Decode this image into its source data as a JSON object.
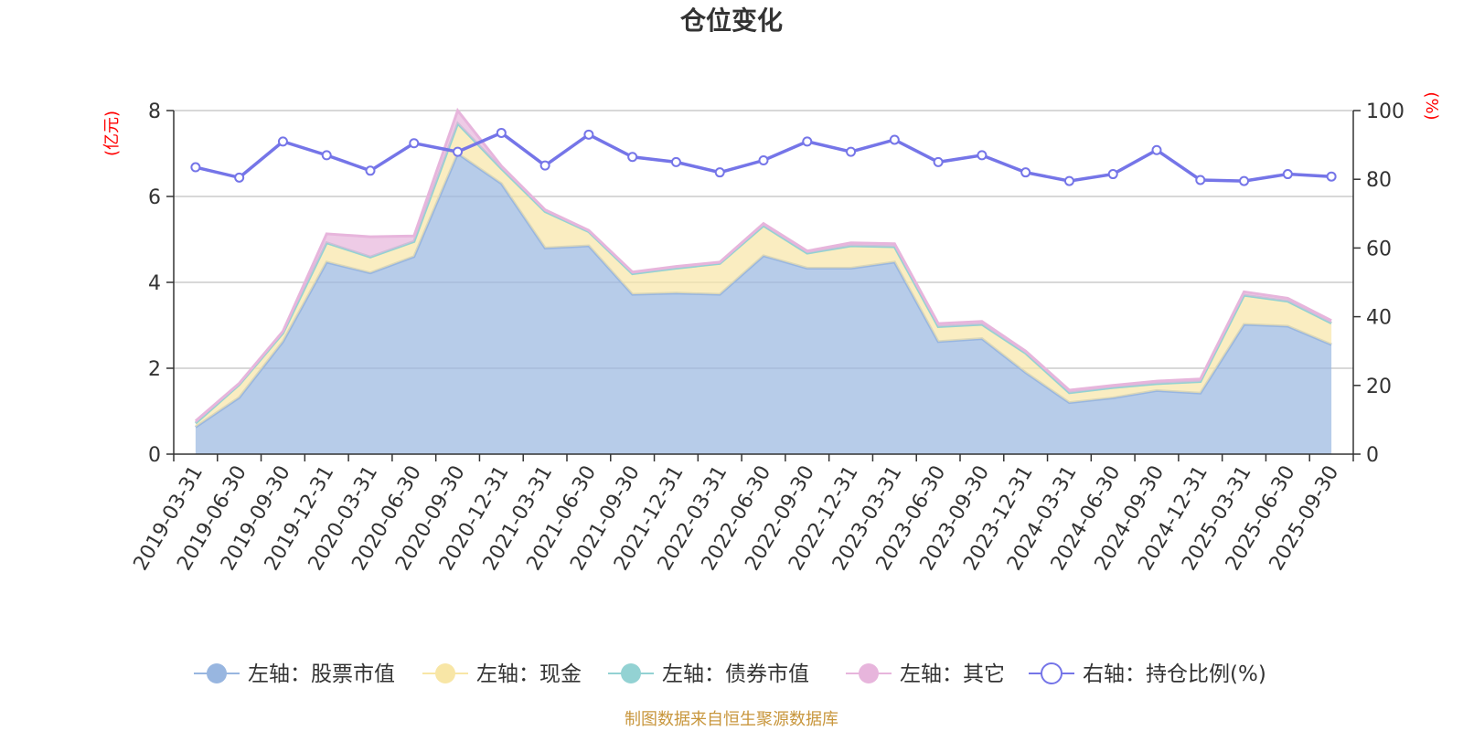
{
  "chart_data": {
    "type": "area",
    "title": "仓位变化",
    "y_left_unit": "(亿元)",
    "y_right_unit": "(%)",
    "y_left_lim": [
      0,
      8
    ],
    "y_left_ticks": [
      0,
      2,
      4,
      6,
      8
    ],
    "y_right_lim": [
      0,
      100
    ],
    "y_right_ticks": [
      0,
      20,
      40,
      60,
      80,
      100
    ],
    "grid": true,
    "legend_position": "bottom",
    "categories": [
      "2019-03-31",
      "2019-06-30",
      "2019-09-30",
      "2019-12-31",
      "2020-03-31",
      "2020-06-30",
      "2020-09-30",
      "2020-12-31",
      "2021-03-31",
      "2021-06-30",
      "2021-09-30",
      "2021-12-31",
      "2022-03-31",
      "2022-06-30",
      "2022-09-30",
      "2022-12-31",
      "2023-03-31",
      "2023-06-30",
      "2023-09-30",
      "2023-12-31",
      "2024-03-31",
      "2024-06-30",
      "2024-09-30",
      "2024-12-31",
      "2025-03-31",
      "2025-06-30",
      "2025-09-30"
    ],
    "series": [
      {
        "name": "左轴：股票市值",
        "axis": "left",
        "kind": "stacked-area",
        "color": "#98b6e0",
        "values": [
          0.63,
          1.32,
          2.62,
          4.47,
          4.22,
          4.6,
          7.0,
          6.3,
          4.8,
          4.85,
          3.72,
          3.75,
          3.72,
          4.62,
          4.33,
          4.33,
          4.47,
          2.62,
          2.69,
          1.9,
          1.2,
          1.31,
          1.48,
          1.42,
          3.02,
          2.98,
          2.55
        ]
      },
      {
        "name": "左轴：现金",
        "axis": "left",
        "kind": "stacked-area",
        "color": "#f8e6a6",
        "values": [
          0.09,
          0.3,
          0.2,
          0.45,
          0.37,
          0.35,
          0.7,
          0.35,
          0.85,
          0.33,
          0.48,
          0.58,
          0.72,
          0.7,
          0.35,
          0.52,
          0.36,
          0.35,
          0.33,
          0.45,
          0.23,
          0.24,
          0.16,
          0.27,
          0.68,
          0.58,
          0.5
        ]
      },
      {
        "name": "左轴：债券市值",
        "axis": "left",
        "kind": "stacked-area",
        "color": "#93d2d3",
        "values": [
          0,
          0,
          0,
          0,
          0,
          0,
          0,
          0,
          0,
          0,
          0,
          0,
          0,
          0,
          0,
          0,
          0,
          0,
          0,
          0,
          0,
          0,
          0,
          0,
          0,
          0,
          0
        ]
      },
      {
        "name": "左轴：其它",
        "axis": "left",
        "kind": "stacked-area",
        "color": "#e7b5dc",
        "values": [
          0.05,
          0.03,
          0.04,
          0.21,
          0.47,
          0.13,
          0.3,
          0.06,
          0.04,
          0.03,
          0.04,
          0.04,
          0.03,
          0.05,
          0.05,
          0.07,
          0.07,
          0.07,
          0.07,
          0.05,
          0.06,
          0.05,
          0.06,
          0.06,
          0.08,
          0.07,
          0.06
        ]
      },
      {
        "name": "右轴：持仓比例(%)",
        "axis": "right",
        "kind": "line",
        "color": "#7575e8",
        "values": [
          83.5,
          80.5,
          91,
          87,
          82.5,
          90.5,
          88,
          93.5,
          84,
          93,
          86.5,
          85,
          82,
          85.5,
          91,
          88,
          91.5,
          85,
          87,
          82,
          79.5,
          81.5,
          88.5,
          79.8,
          79.5,
          81.5,
          80.8
        ]
      }
    ],
    "source_note": "制图数据来自恒生聚源数据库"
  }
}
